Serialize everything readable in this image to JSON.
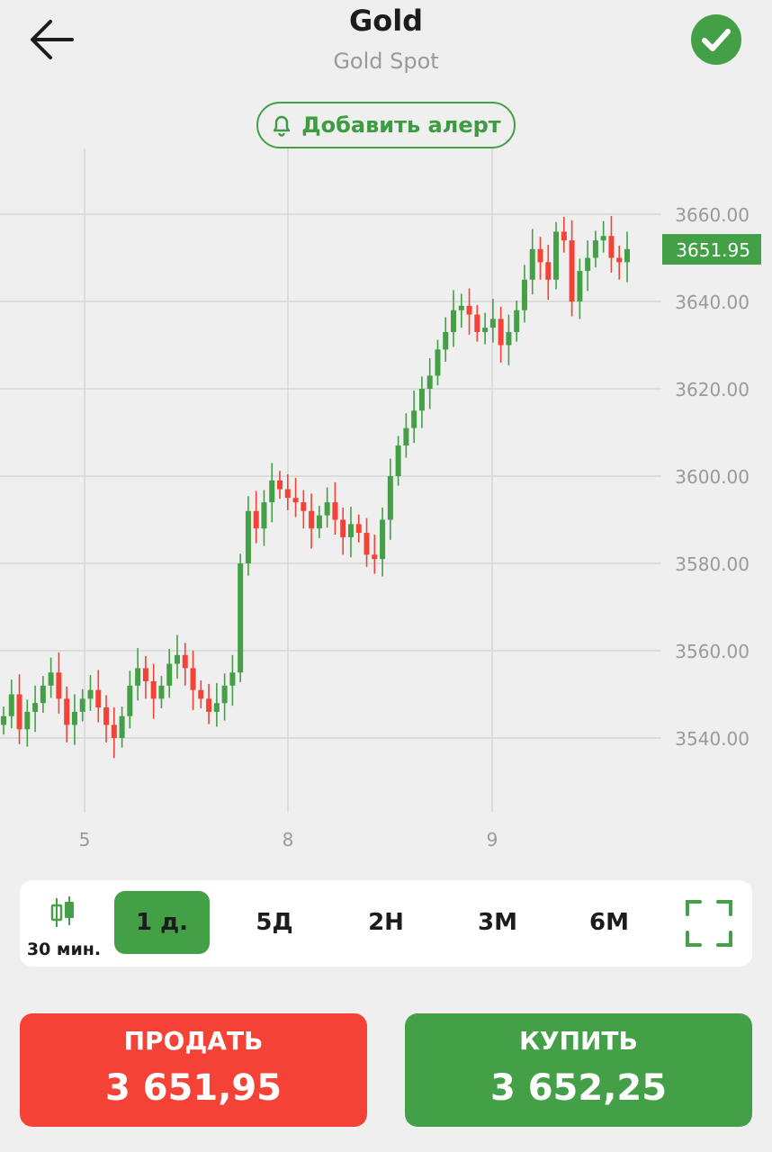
{
  "header": {
    "title": "Gold",
    "subtitle": "Gold Spot"
  },
  "alert_button": {
    "label": "Добавить алерт"
  },
  "colors": {
    "accent": "#43a047",
    "sell": "#f44336",
    "up": "#43a047",
    "down": "#f44336"
  },
  "chart_data": {
    "type": "candlestick",
    "x_tick_labels": [
      "5",
      "8",
      "9"
    ],
    "y_tick_labels": [
      "3660.00",
      "3640.00",
      "3620.00",
      "3600.00",
      "3580.00",
      "3560.00",
      "3540.00"
    ],
    "ylim": [
      3526,
      3675
    ],
    "grid": true,
    "current_price": 3651.95,
    "current_price_label": "3651.95",
    "interval": "30 мин.",
    "closes": [
      3545,
      3550,
      3542,
      3546,
      3548,
      3552,
      3555,
      3549,
      3543,
      3546,
      3549,
      3551,
      3547,
      3543,
      3540,
      3545,
      3552,
      3556,
      3553,
      3549,
      3552,
      3557,
      3559,
      3556,
      3551,
      3549,
      3546,
      3548,
      3552,
      3555,
      3580,
      3592,
      3588,
      3594,
      3599,
      3597,
      3595,
      3594,
      3592,
      3588,
      3591,
      3594,
      3590,
      3586,
      3589,
      3587,
      3582,
      3581,
      3590,
      3600,
      3607,
      3611,
      3615,
      3620,
      3623,
      3629,
      3633,
      3638,
      3639,
      3637,
      3633,
      3634,
      3636,
      3630,
      3633,
      3638,
      3645,
      3652,
      3649,
      3645,
      3656,
      3654,
      3640,
      3647,
      3650,
      3654,
      3655,
      3650,
      3649,
      3652
    ]
  },
  "timebar": {
    "interval_label": "30 мин.",
    "ranges": [
      {
        "label": "1 д.",
        "active": true
      },
      {
        "label": "5Д",
        "active": false
      },
      {
        "label": "2Н",
        "active": false
      },
      {
        "label": "3М",
        "active": false
      },
      {
        "label": "6М",
        "active": false
      }
    ]
  },
  "trade": {
    "sell_label": "ПРОДАТЬ",
    "sell_price": "3 651,95",
    "buy_label": "КУПИТЬ",
    "buy_price": "3 652,25"
  }
}
